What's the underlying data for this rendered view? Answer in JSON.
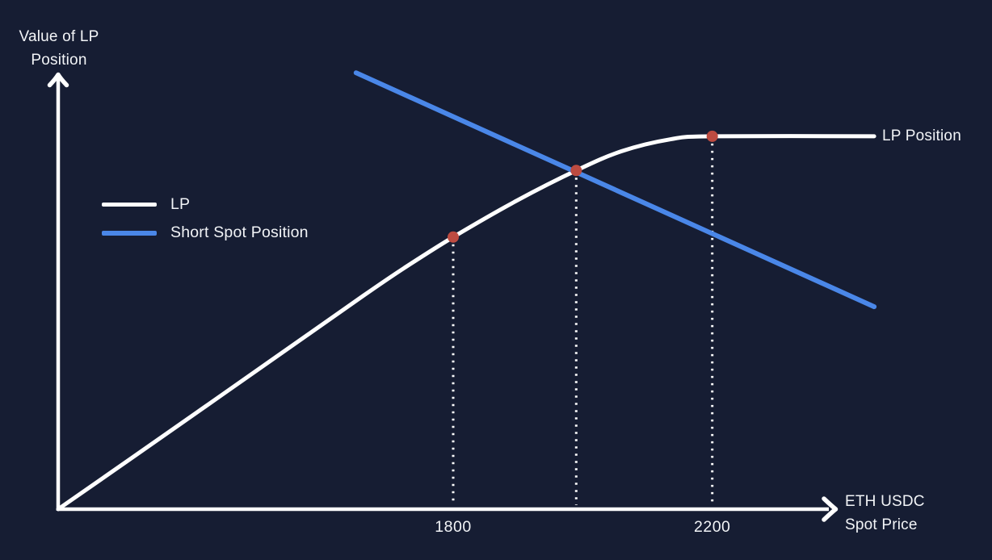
{
  "colors": {
    "background": "#161d33",
    "text": "#f2f4f7",
    "axis": "#ffffff",
    "lp_line": "#ffffff",
    "short_line": "#4a87e8",
    "marker": "#bd4b41",
    "dropline": "#ffffff"
  },
  "labels": {
    "y_axis_line1": "Value of LP",
    "y_axis_line2": "Position",
    "x_axis_line1": "ETH USDC",
    "x_axis_line2": "Spot Price",
    "lp_curve_end": "LP Position"
  },
  "legend": {
    "items": [
      {
        "label": "LP",
        "color": "#ffffff"
      },
      {
        "label": "Short Spot Position",
        "color": "#4a87e8"
      }
    ]
  },
  "chart_data": {
    "type": "line",
    "title": "",
    "xlabel": "ETH USDC Spot Price",
    "ylabel": "Value of LP Position",
    "xlim": [
      1190,
      2385
    ],
    "ylim": [
      0,
      1
    ],
    "grid": false,
    "legend_position": "upper-left-inside",
    "x_tick_labels": [
      "1800",
      "2200"
    ],
    "series": [
      {
        "name": "LP",
        "color": "#ffffff",
        "width": 5,
        "smooth": true,
        "points": [
          [
            1190,
            0
          ],
          [
            1300,
            0.113
          ],
          [
            1412,
            0.229
          ],
          [
            1524,
            0.345
          ],
          [
            1661,
            0.487
          ],
          [
            1724,
            0.55
          ],
          [
            1800,
            0.621
          ],
          [
            1898,
            0.704
          ],
          [
            1990,
            0.773
          ],
          [
            2060,
            0.817
          ],
          [
            2135,
            0.844
          ],
          [
            2200,
            0.851
          ],
          [
            2450,
            0.851
          ]
        ]
      },
      {
        "name": "Short Spot Position",
        "color": "#4a87e8",
        "width": 6,
        "smooth": false,
        "points": [
          [
            1650,
            0.996
          ],
          [
            2450,
            0.462
          ]
        ]
      }
    ],
    "markers": [
      {
        "x": 1800,
        "y": 0.621,
        "tick_label": "1800"
      },
      {
        "x": 1990,
        "y": 0.773,
        "tick_label": ""
      },
      {
        "x": 2200,
        "y": 0.851,
        "tick_label": "2200"
      }
    ],
    "marker_radius": 7,
    "marker_color": "#bd4b41",
    "dropline_style": "dotted"
  }
}
